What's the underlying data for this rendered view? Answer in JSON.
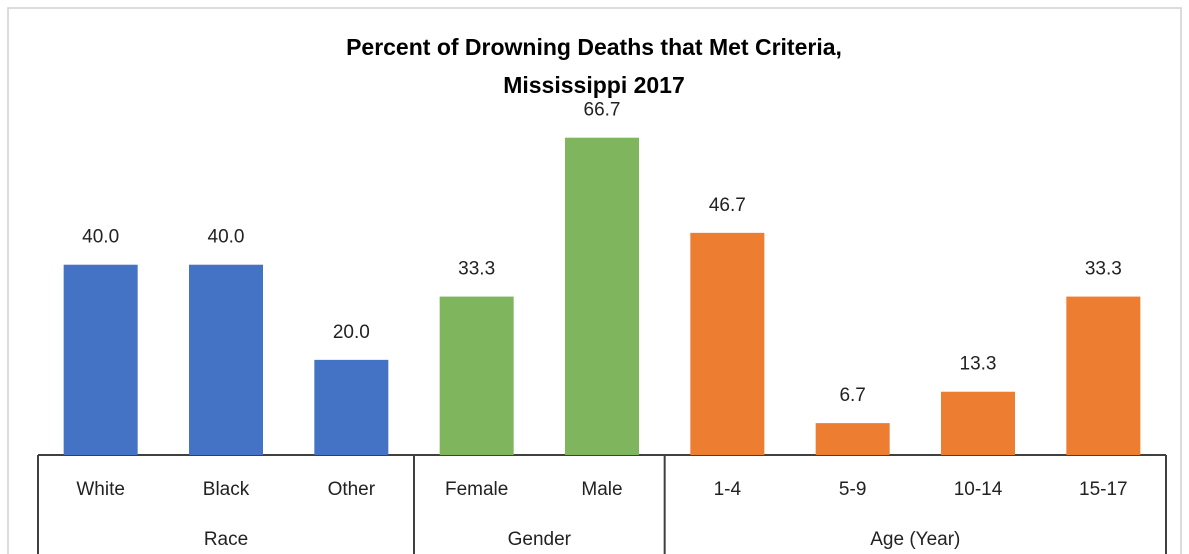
{
  "chart_data": {
    "type": "bar",
    "title": [
      "Percent of Drowning Deaths that Met Criteria,",
      "Mississippi 2017"
    ],
    "ylim": [
      0,
      70
    ],
    "groups": [
      {
        "name": "Race",
        "color": "#4472c4",
        "categories": [
          "White",
          "Black",
          "Other"
        ],
        "values": [
          40,
          40,
          20
        ],
        "value_labels": [
          "40.0",
          "40.0",
          "20.0"
        ]
      },
      {
        "name": "Gender",
        "color": "#7fb65d",
        "categories": [
          "Female",
          "Male"
        ],
        "values": [
          33.3,
          66.7
        ],
        "value_labels": [
          "33.3",
          "66.7"
        ]
      },
      {
        "name": "Age (Year)",
        "color": "#ed7d31",
        "categories": [
          "1-4",
          "5-9",
          "10-14",
          "15-17"
        ],
        "values": [
          46.7,
          6.7,
          13.3,
          33.3
        ],
        "value_labels": [
          "46.7",
          "6.7",
          "13.3",
          "33.3"
        ]
      }
    ]
  }
}
